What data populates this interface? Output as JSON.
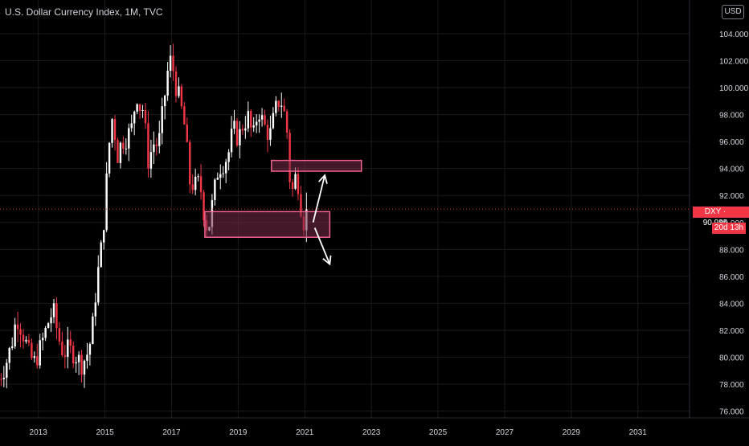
{
  "header": {
    "title": "U.S. Dollar Currency Index, 1M, TVC",
    "currency": "USD"
  },
  "price_tag": {
    "symbol": "DXY",
    "value": "90.985",
    "countdown": "20d 13h"
  },
  "colors": {
    "up": "#ffffff",
    "down": "#f23645",
    "zone_fill": "#7a2e4a",
    "zone_stroke": "#f06292",
    "grid": "#1b1b1b",
    "axis_text": "#d1d4dc"
  },
  "chart_data": {
    "type": "candlestick",
    "symbol": "DXY",
    "interval": "1M",
    "x_ticks": [
      "2013",
      "2015",
      "2017",
      "2019",
      "2021",
      "2023",
      "2025",
      "2027",
      "2029",
      "2031"
    ],
    "y_ticks": [
      "76.000",
      "78.000",
      "80.000",
      "82.000",
      "84.000",
      "86.000",
      "88.000",
      "90.000",
      "92.000",
      "94.000",
      "96.000",
      "98.000",
      "100.000",
      "102.000",
      "104.000"
    ],
    "ylim": [
      75.5,
      106.5
    ],
    "xlim": [
      2011.85,
      2032.55
    ],
    "last_price": 90.985,
    "close_series": [
      {
        "t": 2011.8,
        "c": 78.4
      },
      {
        "t": 2012.0,
        "c": 79.3
      },
      {
        "t": 2012.2,
        "c": 81.0
      },
      {
        "t": 2012.35,
        "c": 83.0
      },
      {
        "t": 2012.45,
        "c": 82.4
      },
      {
        "t": 2012.6,
        "c": 81.3
      },
      {
        "t": 2012.75,
        "c": 80.0
      },
      {
        "t": 2012.9,
        "c": 79.6
      },
      {
        "t": 2013.1,
        "c": 81.0
      },
      {
        "t": 2013.3,
        "c": 82.6
      },
      {
        "t": 2013.45,
        "c": 83.5
      },
      {
        "t": 2013.6,
        "c": 81.5
      },
      {
        "t": 2013.75,
        "c": 80.3
      },
      {
        "t": 2013.9,
        "c": 80.6
      },
      {
        "t": 2014.1,
        "c": 80.2
      },
      {
        "t": 2014.3,
        "c": 79.5
      },
      {
        "t": 2014.45,
        "c": 80.1
      },
      {
        "t": 2014.6,
        "c": 81.5
      },
      {
        "t": 2014.75,
        "c": 85.5
      },
      {
        "t": 2014.9,
        "c": 88.3
      },
      {
        "t": 2015.0,
        "c": 91.0
      },
      {
        "t": 2015.1,
        "c": 95.2
      },
      {
        "t": 2015.25,
        "c": 98.4
      },
      {
        "t": 2015.35,
        "c": 94.7
      },
      {
        "t": 2015.5,
        "c": 96.0
      },
      {
        "t": 2015.65,
        "c": 96.3
      },
      {
        "t": 2015.8,
        "c": 97.0
      },
      {
        "t": 2015.95,
        "c": 99.6
      },
      {
        "t": 2016.05,
        "c": 98.6
      },
      {
        "t": 2016.15,
        "c": 98.4
      },
      {
        "t": 2016.3,
        "c": 94.6
      },
      {
        "t": 2016.5,
        "c": 96.1
      },
      {
        "t": 2016.6,
        "c": 95.5
      },
      {
        "t": 2016.75,
        "c": 98.5
      },
      {
        "t": 2016.9,
        "c": 101.5
      },
      {
        "t": 2017.0,
        "c": 102.2
      },
      {
        "t": 2017.1,
        "c": 100.4
      },
      {
        "t": 2017.25,
        "c": 99.0
      },
      {
        "t": 2017.4,
        "c": 97.0
      },
      {
        "t": 2017.55,
        "c": 93.0
      },
      {
        "t": 2017.7,
        "c": 92.7
      },
      {
        "t": 2017.85,
        "c": 93.0
      },
      {
        "t": 2018.0,
        "c": 90.2
      },
      {
        "t": 2018.1,
        "c": 89.4
      },
      {
        "t": 2018.25,
        "c": 91.8
      },
      {
        "t": 2018.4,
        "c": 94.0
      },
      {
        "t": 2018.55,
        "c": 94.4
      },
      {
        "t": 2018.7,
        "c": 95.0
      },
      {
        "t": 2018.85,
        "c": 97.0
      },
      {
        "t": 2019.0,
        "c": 96.2
      },
      {
        "t": 2019.15,
        "c": 97.3
      },
      {
        "t": 2019.3,
        "c": 97.8
      },
      {
        "t": 2019.45,
        "c": 96.2
      },
      {
        "t": 2019.6,
        "c": 98.5
      },
      {
        "t": 2019.75,
        "c": 97.3
      },
      {
        "t": 2019.95,
        "c": 96.4
      },
      {
        "t": 2020.1,
        "c": 98.1
      },
      {
        "t": 2020.2,
        "c": 99.0
      },
      {
        "t": 2020.3,
        "c": 98.9
      },
      {
        "t": 2020.45,
        "c": 97.4
      },
      {
        "t": 2020.55,
        "c": 93.3
      },
      {
        "t": 2020.65,
        "c": 92.2
      },
      {
        "t": 2020.75,
        "c": 93.9
      },
      {
        "t": 2020.85,
        "c": 91.9
      },
      {
        "t": 2020.95,
        "c": 89.9
      },
      {
        "t": 2021.05,
        "c": 90.985
      }
    ],
    "annotations": [
      {
        "type": "zone",
        "from": 2020.0,
        "to": 2022.7,
        "top": 94.6,
        "bottom": 93.8
      },
      {
        "type": "zone",
        "from": 2018.0,
        "to": 2021.75,
        "top": 90.8,
        "bottom": 88.9
      },
      {
        "type": "arrow",
        "from": [
          2021.25,
          90.0
        ],
        "to": [
          2021.6,
          93.5
        ]
      },
      {
        "type": "arrow",
        "from": [
          2021.3,
          89.6
        ],
        "to": [
          2021.75,
          86.9
        ]
      }
    ]
  }
}
